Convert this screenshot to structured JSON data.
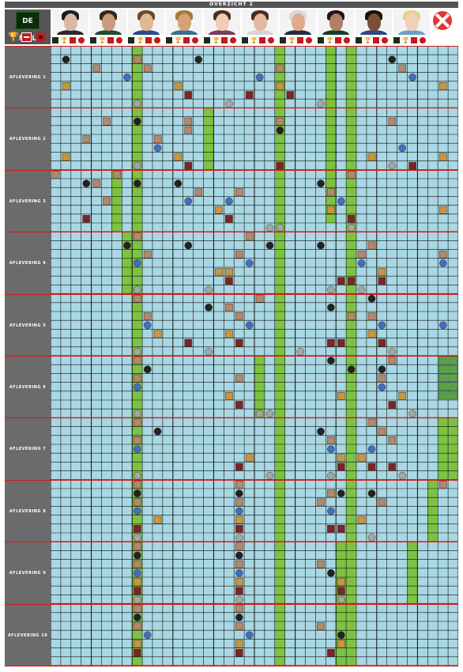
{
  "header": {
    "title": "OVERZICHT 2"
  },
  "logo": {
    "text": "DE MOL"
  },
  "colors": {
    "grid_bg": "#a9d7e3",
    "grid_line": "#111111",
    "episode_border": "#d01a1a",
    "label_bg": "#6b6b6b",
    "highlight": "#7cc243",
    "header_bg": "#555555"
  },
  "legend_icons": [
    "trophy-icon",
    "money-icon",
    "execution-icon"
  ],
  "candidates": [
    {
      "hair": "#1b1b1b",
      "skin": "#d8b9a3",
      "shirt": "#2a2a2a"
    },
    {
      "hair": "#3b2414",
      "skin": "#c99a7c",
      "shirt": "#1f4d2f"
    },
    {
      "hair": "#6a4a2a",
      "skin": "#e1b892",
      "shirt": "#284a8c"
    },
    {
      "hair": "#a57a3a",
      "skin": "#d6a273",
      "shirt": "#3c6e8a"
    },
    {
      "hair": "#4a2f22",
      "skin": "#f0cdb4",
      "shirt": "#7b3b5d"
    },
    {
      "hair": "#4a2a1a",
      "skin": "#e3b99d",
      "shirt": "#d5d5d5"
    },
    {
      "hair": "#d8d8d8",
      "skin": "#e1aa8a",
      "shirt": "#222d3c"
    },
    {
      "hair": "#231612",
      "skin": "#b08064",
      "shirt": "#1c3c2a"
    },
    {
      "hair": "#1a1008",
      "skin": "#7a5037",
      "shirt": "#2c4a7a"
    },
    {
      "hair": "#e5d18a",
      "skin": "#f2d0b8",
      "shirt": "#6aa0c4"
    }
  ],
  "episodes": [
    {
      "label": "AFLEVERING 1"
    },
    {
      "label": "AFLEVERING 2"
    },
    {
      "label": "AFLEVERING 3"
    },
    {
      "label": "AFLEVERING 4"
    },
    {
      "label": "AFLEVERING 5"
    },
    {
      "label": "AFLEVERING 6"
    },
    {
      "label": "AFLEVERING 7"
    },
    {
      "label": "AFLEVERING 8"
    },
    {
      "label": "AFLEVERING 9"
    },
    {
      "label": "AFLEVERING 10"
    }
  ],
  "highlight_segments": [
    {
      "col": 8,
      "from": 0,
      "to": 70
    },
    {
      "col": 22,
      "from": 0,
      "to": 70
    },
    {
      "col": 27,
      "from": 0,
      "to": 20
    },
    {
      "col": 29,
      "from": 0,
      "to": 70
    },
    {
      "col": 15,
      "from": 7,
      "to": 14
    },
    {
      "col": 6,
      "from": 14,
      "to": 21
    },
    {
      "col": 7,
      "from": 21,
      "to": 28
    },
    {
      "col": 20,
      "from": 35,
      "to": 42
    },
    {
      "col": 38,
      "from": 42,
      "to": 49
    },
    {
      "col": 39,
      "from": 42,
      "to": 49
    },
    {
      "col": 37,
      "from": 49,
      "to": 56
    },
    {
      "col": 35,
      "from": 56,
      "to": 63
    },
    {
      "col": 28,
      "from": 56,
      "to": 70
    }
  ],
  "icons": [
    {
      "t": "mol",
      "c": 1,
      "r": 1
    },
    {
      "t": "gold",
      "c": 1,
      "r": 4
    },
    {
      "t": "face",
      "c": 4,
      "r": 2
    },
    {
      "t": "face",
      "c": 8,
      "r": 1
    },
    {
      "t": "blue",
      "c": 7,
      "r": 3
    },
    {
      "t": "face",
      "c": 9,
      "r": 2
    },
    {
      "t": "gold",
      "c": 12,
      "r": 4
    },
    {
      "t": "red",
      "c": 13,
      "r": 5
    },
    {
      "t": "mol",
      "c": 14,
      "r": 1
    },
    {
      "t": "coin",
      "c": 17,
      "r": 6
    },
    {
      "t": "red",
      "c": 19,
      "r": 5
    },
    {
      "t": "blue",
      "c": 20,
      "r": 3
    },
    {
      "t": "face",
      "c": 22,
      "r": 2
    },
    {
      "t": "gold",
      "c": 22,
      "r": 4
    },
    {
      "t": "red",
      "c": 23,
      "r": 5
    },
    {
      "t": "coin",
      "c": 26,
      "r": 6
    },
    {
      "t": "coin",
      "c": 8,
      "r": 6
    },
    {
      "t": "mol",
      "c": 33,
      "r": 1
    },
    {
      "t": "face",
      "c": 34,
      "r": 2
    },
    {
      "t": "blue",
      "c": 35,
      "r": 3
    },
    {
      "t": "gold",
      "c": 38,
      "r": 4
    },
    {
      "t": "face",
      "c": 5,
      "r": 8
    },
    {
      "t": "face",
      "c": 3,
      "r": 10
    },
    {
      "t": "gold",
      "c": 1,
      "r": 12
    },
    {
      "t": "mol",
      "c": 8,
      "r": 8
    },
    {
      "t": "face",
      "c": 10,
      "r": 10
    },
    {
      "t": "blue",
      "c": 10,
      "r": 11
    },
    {
      "t": "gold",
      "c": 12,
      "r": 12
    },
    {
      "t": "red",
      "c": 13,
      "r": 13
    },
    {
      "t": "face",
      "c": 13,
      "r": 8
    },
    {
      "t": "face",
      "c": 13,
      "r": 9
    },
    {
      "t": "mol",
      "c": 22,
      "r": 9
    },
    {
      "t": "face",
      "c": 22,
      "r": 8
    },
    {
      "t": "red",
      "c": 22,
      "r": 13
    },
    {
      "t": "gold",
      "c": 31,
      "r": 12
    },
    {
      "t": "face",
      "c": 33,
      "r": 8
    },
    {
      "t": "blue",
      "c": 34,
      "r": 11
    },
    {
      "t": "red",
      "c": 35,
      "r": 13
    },
    {
      "t": "coin",
      "c": 8,
      "r": 13
    },
    {
      "t": "coin",
      "c": 33,
      "r": 13
    },
    {
      "t": "gold",
      "c": 38,
      "r": 12
    },
    {
      "t": "face",
      "c": 0,
      "r": 14
    },
    {
      "t": "face",
      "c": 4,
      "r": 15
    },
    {
      "t": "face",
      "c": 5,
      "r": 17
    },
    {
      "t": "mol",
      "c": 3,
      "r": 15
    },
    {
      "t": "red",
      "c": 3,
      "r": 19
    },
    {
      "t": "face",
      "c": 6,
      "r": 14
    },
    {
      "t": "mol",
      "c": 8,
      "r": 15
    },
    {
      "t": "mol",
      "c": 12,
      "r": 15
    },
    {
      "t": "face",
      "c": 14,
      "r": 16
    },
    {
      "t": "blue",
      "c": 13,
      "r": 17
    },
    {
      "t": "gold",
      "c": 16,
      "r": 18
    },
    {
      "t": "face",
      "c": 18,
      "r": 16
    },
    {
      "t": "blue",
      "c": 17,
      "r": 17
    },
    {
      "t": "red",
      "c": 17,
      "r": 19
    },
    {
      "t": "coin",
      "c": 21,
      "r": 20
    },
    {
      "t": "mol",
      "c": 26,
      "r": 15
    },
    {
      "t": "face",
      "c": 27,
      "r": 16
    },
    {
      "t": "gold",
      "c": 27,
      "r": 18
    },
    {
      "t": "blue",
      "c": 28,
      "r": 17
    },
    {
      "t": "face",
      "c": 29,
      "r": 14
    },
    {
      "t": "red",
      "c": 29,
      "r": 19
    },
    {
      "t": "coin",
      "c": 22,
      "r": 20
    },
    {
      "t": "coin",
      "c": 29,
      "r": 20
    },
    {
      "t": "gold",
      "c": 38,
      "r": 18
    },
    {
      "t": "face",
      "c": 8,
      "r": 21
    },
    {
      "t": "mol",
      "c": 7,
      "r": 22
    },
    {
      "t": "face",
      "c": 9,
      "r": 23
    },
    {
      "t": "blue",
      "c": 8,
      "r": 24
    },
    {
      "t": "gold",
      "c": 16,
      "r": 25
    },
    {
      "t": "gold",
      "c": 17,
      "r": 25
    },
    {
      "t": "red",
      "c": 17,
      "r": 26
    },
    {
      "t": "face",
      "c": 19,
      "r": 21
    },
    {
      "t": "face",
      "c": 18,
      "r": 23
    },
    {
      "t": "blue",
      "c": 19,
      "r": 24
    },
    {
      "t": "mol",
      "c": 13,
      "r": 22
    },
    {
      "t": "mol",
      "c": 21,
      "r": 22
    },
    {
      "t": "coin",
      "c": 15,
      "r": 27
    },
    {
      "t": "coin",
      "c": 8,
      "r": 27
    },
    {
      "t": "mol",
      "c": 26,
      "r": 22
    },
    {
      "t": "face",
      "c": 31,
      "r": 22
    },
    {
      "t": "face",
      "c": 30,
      "r": 23
    },
    {
      "t": "blue",
      "c": 30,
      "r": 24
    },
    {
      "t": "gold",
      "c": 32,
      "r": 25
    },
    {
      "t": "red",
      "c": 28,
      "r": 26
    },
    {
      "t": "red",
      "c": 29,
      "r": 26
    },
    {
      "t": "red",
      "c": 32,
      "r": 26
    },
    {
      "t": "coin",
      "c": 27,
      "r": 27
    },
    {
      "t": "coin",
      "c": 30,
      "r": 27
    },
    {
      "t": "blue",
      "c": 38,
      "r": 24
    },
    {
      "t": "face",
      "c": 38,
      "r": 23
    },
    {
      "t": "face",
      "c": 8,
      "r": 28
    },
    {
      "t": "face",
      "c": 9,
      "r": 30
    },
    {
      "t": "blue",
      "c": 9,
      "r": 31
    },
    {
      "t": "gold",
      "c": 10,
      "r": 32
    },
    {
      "t": "red",
      "c": 13,
      "r": 33
    },
    {
      "t": "mol",
      "c": 15,
      "r": 29
    },
    {
      "t": "face",
      "c": 17,
      "r": 29
    },
    {
      "t": "face",
      "c": 18,
      "r": 30
    },
    {
      "t": "gold",
      "c": 17,
      "r": 32
    },
    {
      "t": "red",
      "c": 18,
      "r": 33
    },
    {
      "t": "face",
      "c": 20,
      "r": 28
    },
    {
      "t": "blue",
      "c": 19,
      "r": 31
    },
    {
      "t": "coin",
      "c": 15,
      "r": 34
    },
    {
      "t": "coin",
      "c": 24,
      "r": 34
    },
    {
      "t": "mol",
      "c": 27,
      "r": 29
    },
    {
      "t": "face",
      "c": 29,
      "r": 30
    },
    {
      "t": "red",
      "c": 27,
      "r": 33
    },
    {
      "t": "red",
      "c": 28,
      "r": 33
    },
    {
      "t": "mol",
      "c": 31,
      "r": 28
    },
    {
      "t": "face",
      "c": 31,
      "r": 30
    },
    {
      "t": "blue",
      "c": 32,
      "r": 31
    },
    {
      "t": "gold",
      "c": 31,
      "r": 32
    },
    {
      "t": "red",
      "c": 32,
      "r": 33
    },
    {
      "t": "coin",
      "c": 33,
      "r": 34
    },
    {
      "t": "coin",
      "c": 8,
      "r": 34
    },
    {
      "t": "blue",
      "c": 38,
      "r": 31
    },
    {
      "t": "face",
      "c": 8,
      "r": 35
    },
    {
      "t": "mol",
      "c": 9,
      "r": 36
    },
    {
      "t": "face",
      "c": 8,
      "r": 37
    },
    {
      "t": "blue",
      "c": 8,
      "r": 38
    },
    {
      "t": "face",
      "c": 18,
      "r": 37
    },
    {
      "t": "gold",
      "c": 17,
      "r": 39
    },
    {
      "t": "red",
      "c": 18,
      "r": 40
    },
    {
      "t": "coin",
      "c": 20,
      "r": 41
    },
    {
      "t": "coin",
      "c": 8,
      "r": 41
    },
    {
      "t": "mol",
      "c": 27,
      "r": 35
    },
    {
      "t": "mol",
      "c": 29,
      "r": 36
    },
    {
      "t": "gold",
      "c": 28,
      "r": 39
    },
    {
      "t": "mol",
      "c": 32,
      "r": 36
    },
    {
      "t": "face",
      "c": 33,
      "r": 35
    },
    {
      "t": "face",
      "c": 32,
      "r": 37
    },
    {
      "t": "blue",
      "c": 32,
      "r": 38
    },
    {
      "t": "gold",
      "c": 34,
      "r": 39
    },
    {
      "t": "red",
      "c": 33,
      "r": 40
    },
    {
      "t": "coin",
      "c": 35,
      "r": 41
    },
    {
      "t": "coin",
      "c": 21,
      "r": 41
    },
    {
      "t": "face",
      "c": 8,
      "r": 42
    },
    {
      "t": "mol",
      "c": 10,
      "r": 43
    },
    {
      "t": "face",
      "c": 8,
      "r": 44
    },
    {
      "t": "blue",
      "c": 8,
      "r": 45
    },
    {
      "t": "gold",
      "c": 19,
      "r": 46
    },
    {
      "t": "red",
      "c": 18,
      "r": 47
    },
    {
      "t": "mol",
      "c": 26,
      "r": 43
    },
    {
      "t": "face",
      "c": 27,
      "r": 44
    },
    {
      "t": "blue",
      "c": 27,
      "r": 45
    },
    {
      "t": "gold",
      "c": 28,
      "r": 46
    },
    {
      "t": "red",
      "c": 28,
      "r": 47
    },
    {
      "t": "face",
      "c": 31,
      "r": 42
    },
    {
      "t": "face",
      "c": 32,
      "r": 43
    },
    {
      "t": "face",
      "c": 33,
      "r": 44
    },
    {
      "t": "blue",
      "c": 31,
      "r": 45
    },
    {
      "t": "gold",
      "c": 30,
      "r": 46
    },
    {
      "t": "red",
      "c": 31,
      "r": 47
    },
    {
      "t": "red",
      "c": 33,
      "r": 47
    },
    {
      "t": "coin",
      "c": 8,
      "r": 48
    },
    {
      "t": "coin",
      "c": 21,
      "r": 48
    },
    {
      "t": "coin",
      "c": 27,
      "r": 48
    },
    {
      "t": "coin",
      "c": 34,
      "r": 48
    },
    {
      "t": "face",
      "c": 8,
      "r": 49
    },
    {
      "t": "mol",
      "c": 8,
      "r": 50
    },
    {
      "t": "face",
      "c": 8,
      "r": 51
    },
    {
      "t": "blue",
      "c": 8,
      "r": 52
    },
    {
      "t": "gold",
      "c": 10,
      "r": 53
    },
    {
      "t": "red",
      "c": 8,
      "r": 54
    },
    {
      "t": "face",
      "c": 18,
      "r": 49
    },
    {
      "t": "mol",
      "c": 18,
      "r": 50
    },
    {
      "t": "face",
      "c": 18,
      "r": 51
    },
    {
      "t": "blue",
      "c": 18,
      "r": 52
    },
    {
      "t": "gold",
      "c": 18,
      "r": 53
    },
    {
      "t": "red",
      "c": 18,
      "r": 54
    },
    {
      "t": "face",
      "c": 27,
      "r": 50
    },
    {
      "t": "mol",
      "c": 28,
      "r": 50
    },
    {
      "t": "face",
      "c": 26,
      "r": 51
    },
    {
      "t": "blue",
      "c": 27,
      "r": 52
    },
    {
      "t": "gold",
      "c": 30,
      "r": 53
    },
    {
      "t": "red",
      "c": 27,
      "r": 54
    },
    {
      "t": "red",
      "c": 28,
      "r": 54
    },
    {
      "t": "mol",
      "c": 31,
      "r": 50
    },
    {
      "t": "face",
      "c": 32,
      "r": 51
    },
    {
      "t": "coin",
      "c": 31,
      "r": 55
    },
    {
      "t": "coin",
      "c": 18,
      "r": 55
    },
    {
      "t": "coin",
      "c": 8,
      "r": 55
    },
    {
      "t": "face",
      "c": 38,
      "r": 49
    },
    {
      "t": "face",
      "c": 8,
      "r": 56
    },
    {
      "t": "mol",
      "c": 8,
      "r": 57
    },
    {
      "t": "face",
      "c": 8,
      "r": 58
    },
    {
      "t": "blue",
      "c": 8,
      "r": 59
    },
    {
      "t": "gold",
      "c": 8,
      "r": 60
    },
    {
      "t": "red",
      "c": 8,
      "r": 61
    },
    {
      "t": "face",
      "c": 18,
      "r": 56
    },
    {
      "t": "mol",
      "c": 18,
      "r": 57
    },
    {
      "t": "face",
      "c": 18,
      "r": 58
    },
    {
      "t": "blue",
      "c": 18,
      "r": 59
    },
    {
      "t": "gold",
      "c": 18,
      "r": 60
    },
    {
      "t": "red",
      "c": 18,
      "r": 61
    },
    {
      "t": "face",
      "c": 26,
      "r": 58
    },
    {
      "t": "mol",
      "c": 27,
      "r": 59
    },
    {
      "t": "gold",
      "c": 28,
      "r": 60
    },
    {
      "t": "red",
      "c": 28,
      "r": 61
    },
    {
      "t": "coin",
      "c": 8,
      "r": 62
    },
    {
      "t": "coin",
      "c": 18,
      "r": 62
    },
    {
      "t": "coin",
      "c": 28,
      "r": 62
    },
    {
      "t": "face",
      "c": 8,
      "r": 63
    },
    {
      "t": "mol",
      "c": 8,
      "r": 64
    },
    {
      "t": "face",
      "c": 8,
      "r": 65
    },
    {
      "t": "blue",
      "c": 9,
      "r": 66
    },
    {
      "t": "gold",
      "c": 8,
      "r": 67
    },
    {
      "t": "red",
      "c": 8,
      "r": 68
    },
    {
      "t": "face",
      "c": 18,
      "r": 63
    },
    {
      "t": "mol",
      "c": 18,
      "r": 64
    },
    {
      "t": "face",
      "c": 18,
      "r": 65
    },
    {
      "t": "blue",
      "c": 19,
      "r": 66
    },
    {
      "t": "gold",
      "c": 18,
      "r": 67
    },
    {
      "t": "red",
      "c": 18,
      "r": 68
    },
    {
      "t": "face",
      "c": 26,
      "r": 65
    },
    {
      "t": "mol",
      "c": 28,
      "r": 66
    },
    {
      "t": "gold",
      "c": 28,
      "r": 67
    },
    {
      "t": "red",
      "c": 27,
      "r": 68
    }
  ]
}
